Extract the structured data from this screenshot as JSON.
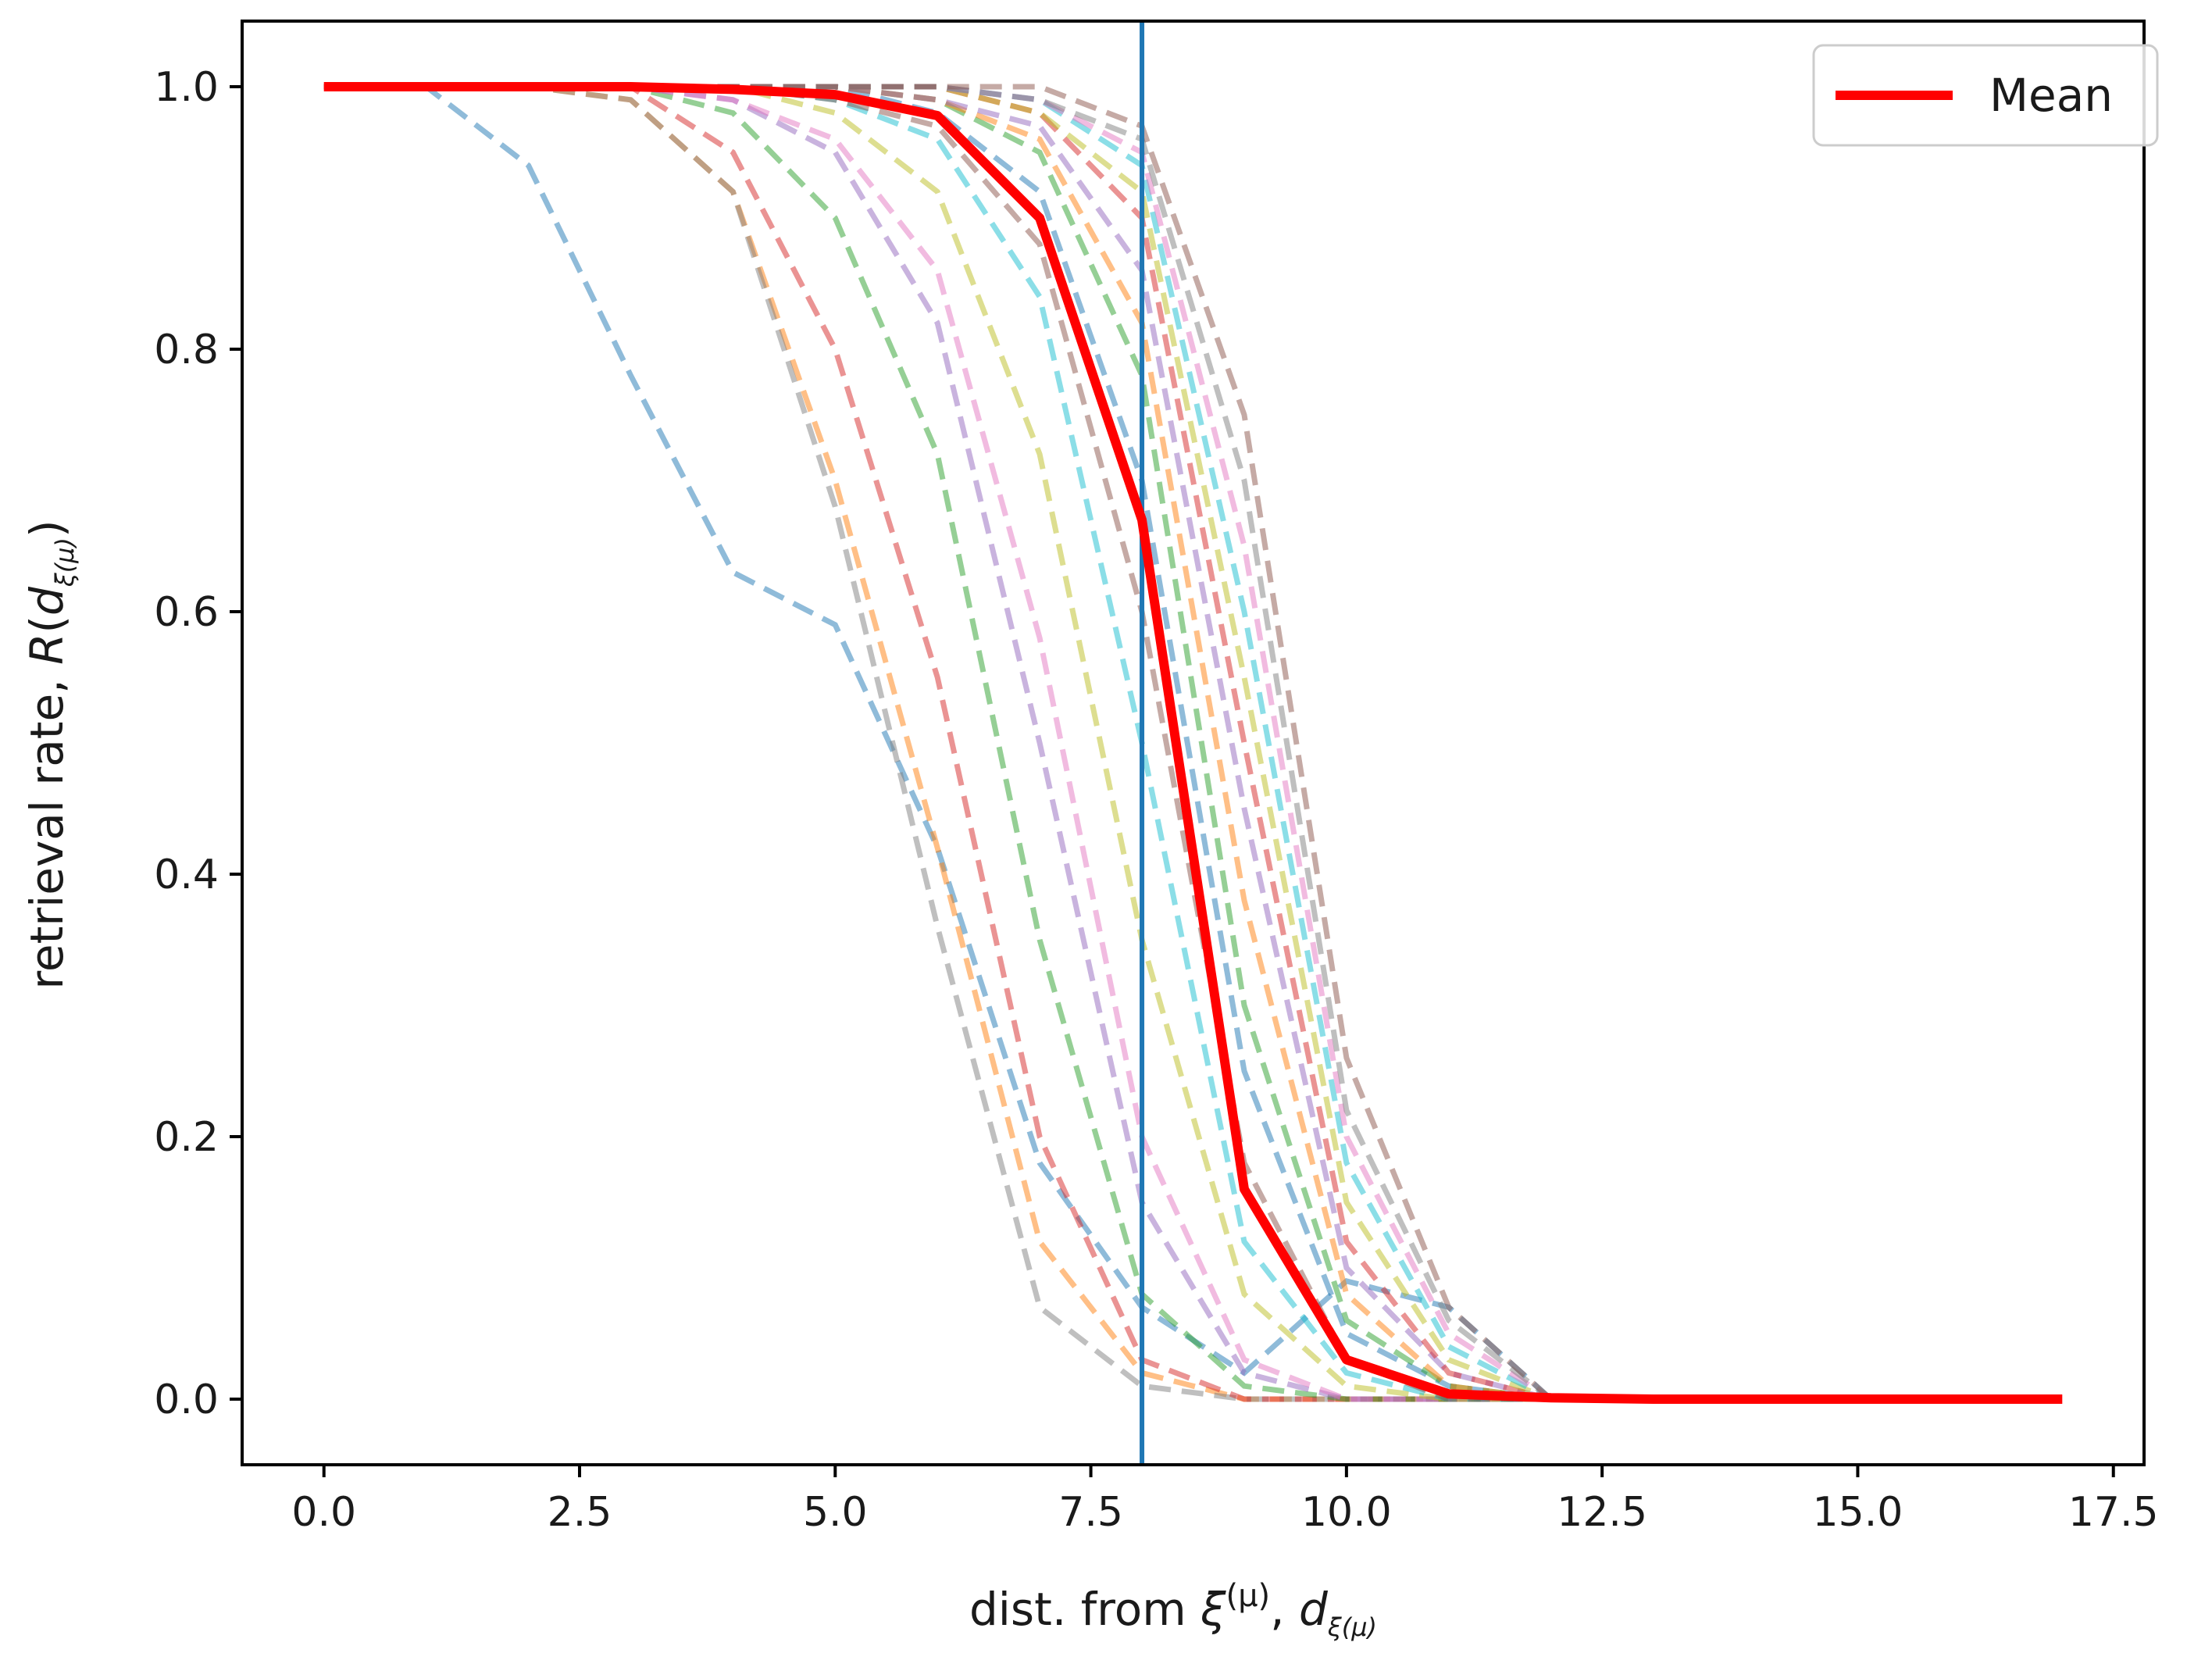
{
  "chart_data": {
    "type": "line",
    "title": "",
    "xlabel": {
      "prefix": "dist. from ",
      "xi": "ξ",
      "sup": "(μ)",
      "sep": ", ",
      "d": "d",
      "sub": "ξ(μ)"
    },
    "ylabel": {
      "prefix": "retrieval rate, ",
      "R": "R",
      "open": "(",
      "d": "d",
      "sub": "ξ(μ)",
      "close": ")"
    },
    "xlim": [
      -0.8,
      17.8
    ],
    "ylim": [
      -0.05,
      1.05
    ],
    "xticks": [
      0.0,
      2.5,
      5.0,
      7.5,
      10.0,
      12.5,
      15.0,
      17.5
    ],
    "xtick_labels": [
      "0.0",
      "2.5",
      "5.0",
      "7.5",
      "10.0",
      "12.5",
      "15.0",
      "17.5"
    ],
    "yticks": [
      0.0,
      0.2,
      0.4,
      0.6,
      0.8,
      1.0
    ],
    "ytick_labels": [
      "0.0",
      "0.2",
      "0.4",
      "0.6",
      "0.8",
      "1.0"
    ],
    "grid": false,
    "legend": {
      "position": "top-right",
      "entries": [
        "Mean"
      ]
    },
    "vline": {
      "x": 8.0,
      "color": "#1f77b4"
    },
    "series": [
      {
        "name": "Mean",
        "color": "#ff0000",
        "style": "solid",
        "x": [
          0,
          1,
          2,
          3,
          4,
          5,
          6,
          7,
          8,
          9,
          10,
          11,
          12,
          13,
          14,
          15,
          16,
          17
        ],
        "y": [
          1.0,
          1.0,
          1.0,
          1.0,
          0.998,
          0.994,
          0.978,
          0.9,
          0.67,
          0.16,
          0.03,
          0.004,
          0.001,
          0.0,
          0.0,
          0.0,
          0.0,
          0.0
        ]
      },
      {
        "style": "dashed",
        "color": "#1f77b4",
        "x": [
          0,
          1,
          2,
          3,
          4,
          5,
          6,
          7,
          8,
          9,
          10,
          11,
          12
        ],
        "y": [
          1.0,
          1.0,
          0.94,
          0.78,
          0.63,
          0.59,
          0.42,
          0.18,
          0.07,
          0.02,
          0.09,
          0.07,
          0.0
        ]
      },
      {
        "style": "dashed",
        "color": "#ff7f0e",
        "x": [
          0,
          1,
          2,
          3,
          4,
          5,
          6,
          7,
          8,
          9,
          10,
          11,
          12
        ],
        "y": [
          1.0,
          1.0,
          1.0,
          0.99,
          0.92,
          0.7,
          0.42,
          0.12,
          0.02,
          0.0,
          0.0,
          0.0,
          0.0
        ]
      },
      {
        "style": "dashed",
        "color": "#7f7f7f",
        "x": [
          0,
          1,
          2,
          3,
          4,
          5,
          6,
          7,
          8,
          9,
          10,
          11,
          12
        ],
        "y": [
          1.0,
          1.0,
          1.0,
          0.99,
          0.92,
          0.68,
          0.36,
          0.07,
          0.01,
          0.0,
          0.0,
          0.0,
          0.0
        ]
      },
      {
        "style": "dashed",
        "color": "#d62728",
        "x": [
          0,
          1,
          2,
          3,
          4,
          5,
          6,
          7,
          8,
          9,
          10,
          11,
          12
        ],
        "y": [
          1.0,
          1.0,
          1.0,
          1.0,
          0.95,
          0.8,
          0.55,
          0.2,
          0.03,
          0.0,
          0.0,
          0.0,
          0.0
        ]
      },
      {
        "style": "dashed",
        "color": "#2ca02c",
        "x": [
          0,
          1,
          2,
          3,
          4,
          5,
          6,
          7,
          8,
          9,
          10,
          11,
          12
        ],
        "y": [
          1.0,
          1.0,
          1.0,
          1.0,
          0.98,
          0.9,
          0.72,
          0.35,
          0.08,
          0.01,
          0.0,
          0.0,
          0.0
        ]
      },
      {
        "style": "dashed",
        "color": "#9467bd",
        "x": [
          0,
          1,
          2,
          3,
          4,
          5,
          6,
          7,
          8,
          9,
          10,
          11,
          12
        ],
        "y": [
          1.0,
          1.0,
          1.0,
          1.0,
          0.99,
          0.95,
          0.82,
          0.5,
          0.15,
          0.02,
          0.0,
          0.0,
          0.0
        ]
      },
      {
        "style": "dashed",
        "color": "#e377c2",
        "x": [
          0,
          1,
          2,
          3,
          4,
          5,
          6,
          7,
          8,
          9,
          10,
          11,
          12
        ],
        "y": [
          1.0,
          1.0,
          1.0,
          1.0,
          0.99,
          0.96,
          0.86,
          0.58,
          0.2,
          0.03,
          0.0,
          0.0,
          0.0
        ]
      },
      {
        "style": "dashed",
        "color": "#bcbd22",
        "x": [
          0,
          1,
          2,
          3,
          4,
          5,
          6,
          7,
          8,
          9,
          10,
          11,
          12
        ],
        "y": [
          1.0,
          1.0,
          1.0,
          1.0,
          1.0,
          0.98,
          0.92,
          0.72,
          0.35,
          0.08,
          0.01,
          0.0,
          0.0
        ]
      },
      {
        "style": "dashed",
        "color": "#17becf",
        "x": [
          0,
          1,
          2,
          3,
          4,
          5,
          6,
          7,
          8,
          9,
          10,
          11,
          12
        ],
        "y": [
          1.0,
          1.0,
          1.0,
          1.0,
          1.0,
          0.99,
          0.96,
          0.84,
          0.5,
          0.12,
          0.02,
          0.0,
          0.0
        ]
      },
      {
        "style": "dashed",
        "color": "#8c564b",
        "x": [
          0,
          1,
          2,
          3,
          4,
          5,
          6,
          7,
          8,
          9,
          10,
          11,
          12
        ],
        "y": [
          1.0,
          1.0,
          1.0,
          1.0,
          1.0,
          0.99,
          0.97,
          0.88,
          0.6,
          0.18,
          0.03,
          0.0,
          0.0
        ]
      },
      {
        "style": "dashed",
        "color": "#1f77b4",
        "x": [
          0,
          1,
          2,
          3,
          4,
          5,
          6,
          7,
          8,
          9,
          10,
          11,
          12
        ],
        "y": [
          1.0,
          1.0,
          1.0,
          1.0,
          1.0,
          1.0,
          0.98,
          0.92,
          0.7,
          0.25,
          0.05,
          0.01,
          0.0
        ]
      },
      {
        "style": "dashed",
        "color": "#2ca02c",
        "x": [
          0,
          1,
          2,
          3,
          4,
          5,
          6,
          7,
          8,
          9,
          10,
          11,
          12
        ],
        "y": [
          1.0,
          1.0,
          1.0,
          1.0,
          1.0,
          1.0,
          0.99,
          0.95,
          0.78,
          0.3,
          0.06,
          0.01,
          0.0
        ]
      },
      {
        "style": "dashed",
        "color": "#ff7f0e",
        "x": [
          0,
          1,
          2,
          3,
          4,
          5,
          6,
          7,
          8,
          9,
          10,
          11,
          12
        ],
        "y": [
          1.0,
          1.0,
          1.0,
          1.0,
          1.0,
          1.0,
          0.99,
          0.96,
          0.82,
          0.38,
          0.08,
          0.01,
          0.0
        ]
      },
      {
        "style": "dashed",
        "color": "#9467bd",
        "x": [
          0,
          1,
          2,
          3,
          4,
          5,
          6,
          7,
          8,
          9,
          10,
          11,
          12
        ],
        "y": [
          1.0,
          1.0,
          1.0,
          1.0,
          1.0,
          1.0,
          0.99,
          0.97,
          0.86,
          0.45,
          0.1,
          0.02,
          0.0
        ]
      },
      {
        "style": "dashed",
        "color": "#d62728",
        "x": [
          0,
          1,
          2,
          3,
          4,
          5,
          6,
          7,
          8,
          9,
          10,
          11,
          12
        ],
        "y": [
          1.0,
          1.0,
          1.0,
          1.0,
          1.0,
          1.0,
          1.0,
          0.98,
          0.9,
          0.5,
          0.12,
          0.02,
          0.0
        ]
      },
      {
        "style": "dashed",
        "color": "#bcbd22",
        "x": [
          0,
          1,
          2,
          3,
          4,
          5,
          6,
          7,
          8,
          9,
          10,
          11,
          12
        ],
        "y": [
          1.0,
          1.0,
          1.0,
          1.0,
          1.0,
          1.0,
          1.0,
          0.98,
          0.92,
          0.55,
          0.15,
          0.03,
          0.0
        ]
      },
      {
        "style": "dashed",
        "color": "#17becf",
        "x": [
          0,
          1,
          2,
          3,
          4,
          5,
          6,
          7,
          8,
          9,
          10,
          11,
          12
        ],
        "y": [
          1.0,
          1.0,
          1.0,
          1.0,
          1.0,
          1.0,
          1.0,
          0.99,
          0.94,
          0.6,
          0.18,
          0.04,
          0.0
        ]
      },
      {
        "style": "dashed",
        "color": "#e377c2",
        "x": [
          0,
          1,
          2,
          3,
          4,
          5,
          6,
          7,
          8,
          9,
          10,
          11,
          12
        ],
        "y": [
          1.0,
          1.0,
          1.0,
          1.0,
          1.0,
          1.0,
          1.0,
          0.99,
          0.95,
          0.65,
          0.2,
          0.05,
          0.0
        ]
      },
      {
        "style": "dashed",
        "color": "#7f7f7f",
        "x": [
          0,
          1,
          2,
          3,
          4,
          5,
          6,
          7,
          8,
          9,
          10,
          11,
          12
        ],
        "y": [
          1.0,
          1.0,
          1.0,
          1.0,
          1.0,
          1.0,
          1.0,
          0.99,
          0.96,
          0.7,
          0.22,
          0.06,
          0.0
        ]
      },
      {
        "style": "dashed",
        "color": "#8c564b",
        "x": [
          0,
          1,
          2,
          3,
          4,
          5,
          6,
          7,
          8,
          9,
          10,
          11,
          12
        ],
        "y": [
          1.0,
          1.0,
          1.0,
          1.0,
          1.0,
          1.0,
          1.0,
          1.0,
          0.97,
          0.75,
          0.26,
          0.07,
          0.0
        ]
      }
    ]
  }
}
